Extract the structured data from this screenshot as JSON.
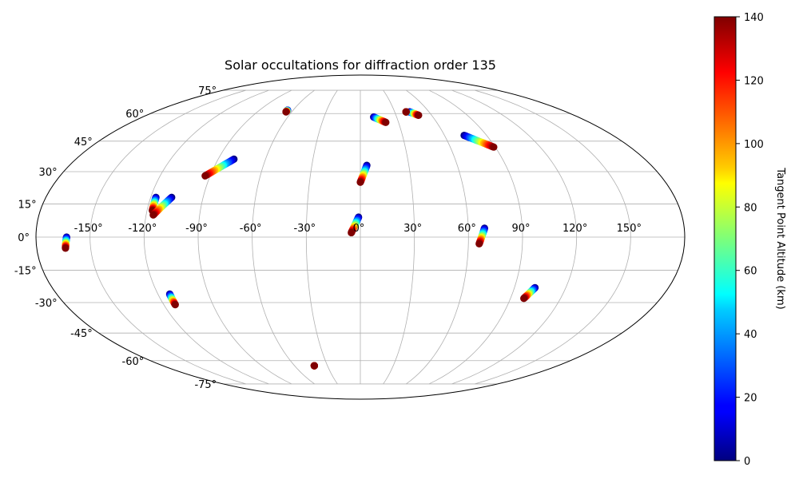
{
  "chart_data": {
    "type": "scatter",
    "projection": "mollweide",
    "title": "Solar occultations for diffraction order 135",
    "longitude_ticks": [
      -150,
      -120,
      -90,
      -60,
      -30,
      0,
      30,
      60,
      90,
      120,
      150
    ],
    "longitude_tick_labels": [
      "-150°",
      "-120°",
      "-90°",
      "-60°",
      "-30°",
      "0°",
      "30°",
      "60°",
      "90°",
      "120°",
      "150°"
    ],
    "latitude_ticks": [
      75,
      60,
      45,
      30,
      15,
      0,
      -15,
      -30,
      -45,
      -60,
      -75
    ],
    "latitude_tick_labels": [
      "75°",
      "60°",
      "45°",
      "30°",
      "15°",
      "0°",
      "-15°",
      "-30°",
      "-45°",
      "-60°",
      "-75°"
    ],
    "grid": true,
    "colorbar": {
      "label": "Tangent Point Altitude (km)",
      "colormap": "jet",
      "min": 0,
      "max": 140,
      "ticks": [
        0,
        20,
        40,
        60,
        80,
        100,
        120,
        140
      ],
      "tick_labels": [
        "0",
        "20",
        "40",
        "60",
        "80",
        "100",
        "120",
        "140"
      ]
    },
    "occultations": [
      {
        "lon_high": -163,
        "lat_high": 0,
        "lon_low": -164,
        "lat_low": -5
      },
      {
        "lon_high": -117,
        "lat_high": 18,
        "lon_low": -117,
        "lat_low": 12
      },
      {
        "lon_high": -108,
        "lat_high": 18,
        "lon_low": -116,
        "lat_low": 10
      },
      {
        "lon_high": -80,
        "lat_high": 36,
        "lon_low": -93,
        "lat_low": 28
      },
      {
        "lon_high": -65,
        "lat_high": 62,
        "lon_low": -65,
        "lat_low": 61
      },
      {
        "lon_high": -113,
        "lat_high": -26,
        "lon_low": -113,
        "lat_low": -31
      },
      {
        "lon_high": -42,
        "lat_high": -63,
        "lon_low": -42,
        "lat_low": -63
      },
      {
        "lon_high": 4,
        "lat_high": 33,
        "lon_low": 0,
        "lat_low": 25
      },
      {
        "lon_high": -1,
        "lat_high": 9,
        "lon_low": -5,
        "lat_low": 2
      },
      {
        "lon_high": 11,
        "lat_high": 58,
        "lon_low": 20,
        "lat_low": 55
      },
      {
        "lon_high": 43,
        "lat_high": 61,
        "lon_low": 49,
        "lat_low": 59
      },
      {
        "lon_high": 40,
        "lat_high": 61,
        "lon_low": 40,
        "lat_low": 61
      },
      {
        "lon_high": 74,
        "lat_high": 48,
        "lon_low": 89,
        "lat_low": 42
      },
      {
        "lon_high": 69,
        "lat_high": 4,
        "lon_low": 66,
        "lat_low": -3
      },
      {
        "lon_high": 102,
        "lat_high": -23,
        "lon_low": 98,
        "lat_low": -28
      }
    ]
  }
}
